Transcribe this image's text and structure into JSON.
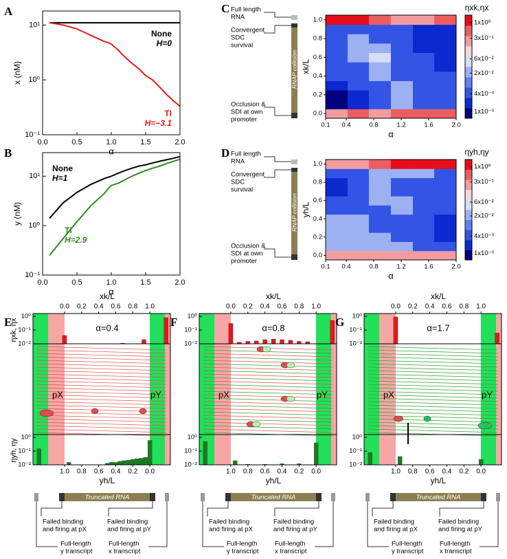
{
  "chart_data": [
    {
      "type": "line",
      "panel": "A",
      "xlabel": "α",
      "ylabel": "x (nM)",
      "log_y": true,
      "xlim": [
        0,
        2
      ],
      "xticks": [
        {
          "value": 0,
          "label": "0.0"
        },
        0.5,
        {
          "value": 1,
          "label": "1.0"
        },
        1.5,
        {
          "value": 2,
          "label": "2.0"
        }
      ],
      "ylim": [
        0.1,
        18
      ],
      "yticks": [
        {
          "value": 0.1,
          "label": "10⁻¹"
        },
        {
          "value": 1,
          "label": "10⁰"
        },
        {
          "value": 10,
          "label": "10¹"
        }
      ],
      "x": [
        0.1,
        0.3,
        0.5,
        0.7,
        0.9,
        0.95,
        1.0,
        1.1,
        1.2,
        1.3,
        1.4,
        1.5,
        1.6,
        1.7,
        1.8,
        1.9,
        2.0
      ],
      "series": [
        {
          "name": "None",
          "annotation": "H=0",
          "color": "#000000",
          "values": [
            11,
            11,
            11,
            11,
            11,
            11,
            11,
            11,
            11,
            11,
            11,
            11,
            11,
            11,
            11,
            11,
            11
          ]
        },
        {
          "name": "TI",
          "annotation": "H=−3.1",
          "color": "#e31a1c",
          "values": [
            11,
            10,
            8.5,
            6.5,
            5,
            4.8,
            4.5,
            3.5,
            2.6,
            2,
            1.6,
            1.2,
            1.0,
            0.75,
            0.55,
            0.42,
            0.33
          ]
        }
      ]
    },
    {
      "type": "line",
      "panel": "B",
      "xlabel": "α",
      "ylabel": "y (nM)",
      "log_y": true,
      "xlim": [
        0,
        2
      ],
      "xticks": [
        {
          "value": 0,
          "label": "0.0"
        },
        0.5,
        {
          "value": 1,
          "label": "1.0"
        },
        1.5,
        {
          "value": 2,
          "label": "2.0"
        }
      ],
      "ylim": [
        0.1,
        30
      ],
      "yticks": [
        {
          "value": 0.1,
          "label": "10⁻¹"
        },
        {
          "value": 1,
          "label": "10⁰"
        },
        {
          "value": 10,
          "label": "10¹"
        }
      ],
      "x": [
        0.1,
        0.3,
        0.5,
        0.7,
        0.9,
        0.95,
        1.0,
        1.1,
        1.2,
        1.3,
        1.4,
        1.5,
        1.6,
        1.7,
        1.8,
        1.9,
        2.0
      ],
      "series": [
        {
          "name": "None",
          "annotation": "H=1",
          "color": "#000000",
          "values": [
            1.4,
            2.9,
            4.7,
            6.8,
            9,
            9.5,
            10,
            11.5,
            13,
            14.5,
            16,
            17,
            18.5,
            20,
            21.5,
            23,
            25
          ]
        },
        {
          "name": "TI",
          "annotation": "H=2.9",
          "color": "#2e8b1e",
          "values": [
            0.25,
            0.55,
            1.2,
            2.5,
            4.5,
            5.5,
            6.5,
            7.2,
            8.5,
            10,
            11.5,
            13,
            14.5,
            16,
            18,
            20,
            22
          ]
        }
      ]
    },
    {
      "type": "heatmap",
      "panel": "C",
      "xlabel": "α",
      "ylabel": "xk/L",
      "colorbar_label": "ηxk,ηx",
      "side_labels": {
        "full": [
          "Full length",
          "RNA"
        ],
        "convergent": [
          "Convergent",
          "SDC",
          "survival"
        ],
        "occlusion": [
          "Occlusion &",
          "SDI at own",
          "promoter"
        ],
        "collision": "RNAP collision"
      },
      "xlim": [
        0.1,
        2.0
      ],
      "xticks": [
        0.1,
        0.4,
        0.8,
        1.2,
        1.6,
        {
          "value": 2,
          "label": "2.0"
        }
      ],
      "ylim": [
        -0.05,
        1.05
      ],
      "yticks": [
        {
          "value": 0,
          "label": "0.0"
        },
        0.2,
        0.4,
        0.6,
        0.8,
        {
          "value": 1,
          "label": "1.0"
        }
      ],
      "xbins": [
        0.1,
        0.42,
        0.73,
        1.05,
        1.37,
        1.68,
        2.0
      ],
      "ybins": [
        -0.05,
        0.05,
        0.15,
        0.25,
        0.35,
        0.45,
        0.55,
        0.65,
        0.75,
        0.85,
        0.95,
        1.05
      ],
      "z": [
        [
          0.3,
          0.5,
          0.3,
          0.5,
          0.5,
          0.5
        ],
        [
          0.001,
          0.002,
          0.004,
          0.02,
          0.004,
          0.004
        ],
        [
          0.001,
          0.002,
          0.004,
          0.02,
          0.004,
          0.004
        ],
        [
          0.002,
          0.004,
          0.004,
          0.02,
          0.004,
          0.004
        ],
        [
          0.004,
          0.004,
          0.02,
          0.004,
          0.004,
          0.004
        ],
        [
          0.004,
          0.004,
          0.02,
          0.004,
          0.004,
          0.002
        ],
        [
          0.004,
          0.02,
          0.06,
          0.004,
          0.004,
          0.002
        ],
        [
          0.004,
          0.02,
          0.02,
          0.004,
          0.002,
          0.002
        ],
        [
          0.004,
          0.02,
          0.004,
          0.004,
          0.002,
          0.002
        ],
        [
          0.004,
          0.004,
          0.004,
          0.004,
          0.002,
          0.002
        ],
        [
          1,
          1,
          0.5,
          0.3,
          0.3,
          0.5
        ]
      ],
      "clim": [
        0.0006,
        1.8
      ],
      "cticks": [
        {
          "value": 1,
          "label": "1x10⁰"
        },
        {
          "value": 0.3,
          "label": "3x10⁻¹"
        },
        {
          "value": 0.06,
          "label": "6x10⁻²"
        },
        {
          "value": 0.02,
          "label": "2x10⁻²"
        },
        {
          "value": 0.004,
          "label": "4x10⁻³"
        },
        {
          "value": 0.001,
          "label": "1x10⁻³"
        }
      ],
      "colors": [
        "#00007f",
        "#0a2ad0",
        "#3355e6",
        "#5f80ee",
        "#9db0f2",
        "#d8ddf7",
        "#f6d8da",
        "#f19da0",
        "#ec5d62",
        "#e60d1a"
      ]
    },
    {
      "type": "heatmap",
      "panel": "D",
      "xlabel": "α",
      "ylabel": "yh/L",
      "colorbar_label": "ηyh,ηy",
      "side_labels": {
        "full": [
          "Full length",
          "RNA"
        ],
        "convergent": [
          "Convergent",
          "SDC",
          "survival"
        ],
        "occlusion": [
          "Occlusion &",
          "SDI at own",
          "promoter"
        ],
        "collision": "RNAP collision"
      },
      "xlim": [
        0.1,
        2.0
      ],
      "xticks": [
        0.1,
        0.4,
        0.8,
        1.2,
        1.6,
        {
          "value": 2,
          "label": "2.0"
        }
      ],
      "ylim": [
        -0.05,
        1.05
      ],
      "yticks": [
        {
          "value": 0,
          "label": "0.0"
        },
        0.2,
        0.4,
        0.6,
        0.8,
        {
          "value": 1,
          "label": "1.0"
        }
      ],
      "xbins": [
        0.1,
        0.42,
        0.73,
        1.05,
        1.37,
        1.68,
        2.0
      ],
      "ybins": [
        -0.05,
        0.05,
        0.15,
        0.25,
        0.35,
        0.45,
        0.55,
        0.65,
        0.75,
        0.85,
        0.95,
        1.05
      ],
      "z": [
        [
          0.3,
          0.3,
          0.3,
          0.3,
          0.3,
          0.3
        ],
        [
          0.02,
          0.02,
          0.02,
          0.02,
          0.004,
          0.004
        ],
        [
          0.02,
          0.02,
          0.02,
          0.004,
          0.004,
          0.002
        ],
        [
          0.02,
          0.02,
          0.004,
          0.004,
          0.004,
          0.002
        ],
        [
          0.02,
          0.02,
          0.004,
          0.004,
          0.004,
          0.002
        ],
        [
          0.004,
          0.004,
          0.004,
          0.02,
          0.004,
          0.004
        ],
        [
          0.004,
          0.004,
          0.02,
          0.02,
          0.004,
          0.004
        ],
        [
          0.002,
          0.004,
          0.02,
          0.004,
          0.004,
          0.004
        ],
        [
          0.002,
          0.004,
          0.02,
          0.004,
          0.004,
          0.004
        ],
        [
          0.004,
          0.004,
          0.02,
          0.02,
          0.02,
          0.004
        ],
        [
          0.3,
          0.3,
          0.6,
          1,
          1,
          1
        ]
      ],
      "clim": [
        0.0006,
        1.8
      ],
      "cticks": [
        {
          "value": 1,
          "label": "1x10⁰"
        },
        {
          "value": 0.3,
          "label": "3x10⁻¹"
        },
        {
          "value": 0.06,
          "label": "6x10⁻²"
        },
        {
          "value": 0.02,
          "label": "2x10⁻²"
        },
        {
          "value": 0.004,
          "label": "4x10⁻³"
        },
        {
          "value": 0.001,
          "label": "1x10⁻³"
        }
      ],
      "colors": [
        "#00007f",
        "#0a2ad0",
        "#3355e6",
        "#5f80ee",
        "#9db0f2",
        "#d8ddf7",
        "#f6d8da",
        "#f19da0",
        "#ec5d62",
        "#e60d1a"
      ]
    },
    {
      "type": "profile",
      "panel": "E",
      "alpha_label": "α=0.4",
      "top_ylabel": "ηxk, ηx",
      "bottom_ylabel": "ηyh, ηy",
      "top_axis_label": "xk/L",
      "bottom_axis_label": "yh/L",
      "promoters": [
        "pX",
        "pY"
      ],
      "xlim": [
        -0.37,
        1.24
      ],
      "xticks": [
        {
          "value": 0,
          "label": "0.0"
        },
        0.2,
        0.4,
        0.6,
        0.8,
        {
          "value": 1,
          "label": "1.0"
        }
      ],
      "bottom_xlim": [
        1.37,
        -0.24
      ],
      "bottom_xticks": [
        {
          "value": 1,
          "label": "1.0"
        },
        0.8,
        0.6,
        0.4,
        0.2,
        {
          "value": 0,
          "label": "0.0"
        }
      ],
      "ylim": [
        0.01,
        1.6
      ],
      "yticks": [
        {
          "value": 1,
          "label": "10⁰"
        },
        {
          "value": 0.1,
          "label": "10⁻¹"
        },
        {
          "value": 0.01,
          "label": "10⁻²"
        }
      ],
      "top_color": "#e31a1c",
      "bottom_color": "#1f7a1f",
      "top_bars": {
        "x": [
          0.0,
          0.68,
          0.93,
          1.19
        ],
        "values": [
          0.04,
          0.011,
          0.02,
          0.8
        ]
      },
      "bottom_bars": {
        "x": [
          1.3,
          0.95,
          0.5,
          0.45,
          0.4,
          0.35,
          0.3,
          0.25,
          0.2,
          0.15,
          0.1,
          0.05,
          0.0
        ],
        "values": [
          0.15,
          0.015,
          0.013,
          0.015,
          0.015,
          0.018,
          0.02,
          0.022,
          0.025,
          0.028,
          0.03,
          0.035,
          0.6
        ]
      },
      "diagram": {
        "truncated": "Truncated RNA",
        "failed_px": [
          "Failed binding",
          "and firing at pX"
        ],
        "failed_py": [
          "Failed binding",
          "and firing at pY"
        ],
        "full_y": [
          "Full-length",
          "y transcript"
        ],
        "full_x": [
          "Full-length",
          "x transcript"
        ]
      }
    },
    {
      "type": "profile",
      "panel": "F",
      "alpha_label": "α=0.8",
      "top_axis_label": "xk/L",
      "bottom_axis_label": "yh/L",
      "promoters": [
        "pX",
        "pY"
      ],
      "xlim": [
        -0.37,
        1.24
      ],
      "xticks": [
        {
          "value": 0,
          "label": "0.0"
        },
        0.2,
        0.4,
        0.6,
        0.8,
        {
          "value": 1,
          "label": "1.0"
        }
      ],
      "bottom_xlim": [
        1.37,
        -0.24
      ],
      "bottom_xticks": [
        {
          "value": 1,
          "label": "1.0"
        },
        0.8,
        0.6,
        0.4,
        0.2,
        {
          "value": 0,
          "label": "0.0"
        }
      ],
      "ylim": [
        0.01,
        1.6
      ],
      "yticks": [
        {
          "value": 1,
          "label": "10⁰"
        },
        {
          "value": 0.1,
          "label": "10⁻¹"
        },
        {
          "value": 0.01,
          "label": "10⁻²"
        }
      ],
      "top_color": "#e31a1c",
      "bottom_color": "#1f7a1f",
      "top_bars": {
        "x": [
          0.0,
          0.1,
          0.2,
          0.3,
          0.4,
          0.5,
          0.6,
          0.7,
          0.8,
          0.9,
          1.19
        ],
        "values": [
          0.3,
          0.013,
          0.015,
          0.016,
          0.02,
          0.022,
          0.02,
          0.018,
          0.015,
          0.014,
          0.5
        ]
      },
      "bottom_bars": {
        "x": [
          1.3,
          0.95,
          0.8,
          0.6,
          0.4,
          0.2,
          0.0
        ],
        "values": [
          0.5,
          0.02,
          0.011,
          0.011,
          0.012,
          0.012,
          0.4
        ]
      },
      "diagram": {
        "truncated": "Truncated RNA",
        "failed_px": [
          "Failed binding",
          "and firing at pX"
        ],
        "failed_py": [
          "Failed binding",
          "and firing at pY"
        ],
        "full_y": [
          "Full-length",
          "y transcript"
        ],
        "full_x": [
          "Full-length",
          "x transcript"
        ]
      }
    },
    {
      "type": "profile",
      "panel": "G",
      "alpha_label": "α=1.7",
      "top_axis_label": "xk/L",
      "bottom_axis_label": "yh/L",
      "promoters": [
        "pX",
        "pY"
      ],
      "xlim": [
        -0.37,
        1.24
      ],
      "xticks": [
        {
          "value": 0,
          "label": "0.0"
        },
        0.2,
        0.4,
        0.6,
        0.8,
        {
          "value": 1,
          "label": "1.0"
        }
      ],
      "bottom_xlim": [
        1.37,
        -0.24
      ],
      "bottom_xticks": [
        {
          "value": 1,
          "label": "1.0"
        },
        0.8,
        0.6,
        0.4,
        0.2,
        {
          "value": 0,
          "label": "0.0"
        }
      ],
      "ylim": [
        0.01,
        1.6
      ],
      "yticks": [
        {
          "value": 1,
          "label": "10⁰"
        },
        {
          "value": 0.1,
          "label": "10⁻¹"
        },
        {
          "value": 0.01,
          "label": "10⁻²"
        }
      ],
      "top_color": "#e31a1c",
      "bottom_color": "#1f7a1f",
      "top_bars": {
        "x": [
          0.0,
          1.19
        ],
        "values": [
          0.9,
          0.06
        ]
      },
      "bottom_bars": {
        "x": [
          1.3,
          0.95,
          0.0
        ],
        "values": [
          0.08,
          0.04,
          0.025
        ]
      },
      "diagram": {
        "truncated": "Truncated RNA",
        "failed_px": [
          "Failed binding",
          "and firing at pX"
        ],
        "failed_py": [
          "Failed binding",
          "and firing at pY"
        ],
        "full_y": [
          "Full-length",
          "y transcript"
        ],
        "full_x": [
          "Full-length",
          "x transcript"
        ]
      }
    }
  ]
}
